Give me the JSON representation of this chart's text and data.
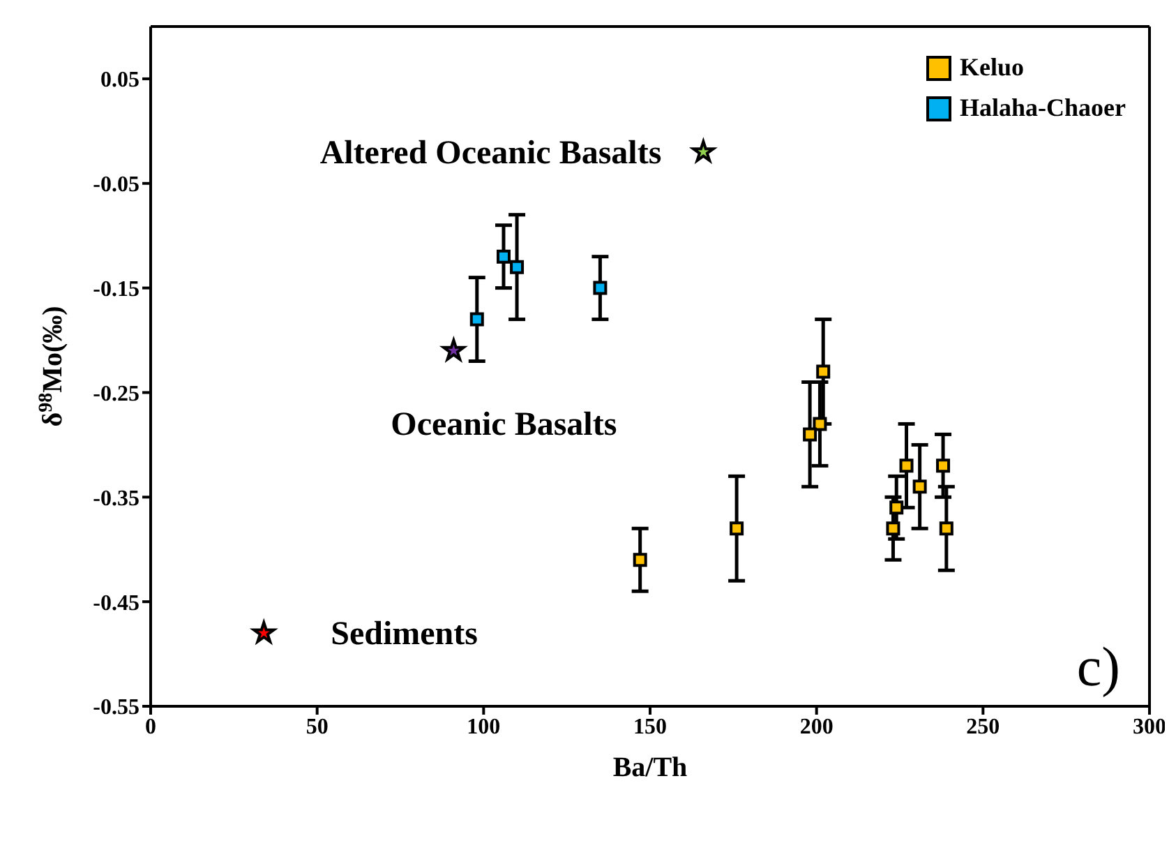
{
  "chart_data": {
    "type": "scatter",
    "xlabel": "Ba/Th",
    "ylabel": "δ$^{98}$Mo(‰)",
    "xlim": [
      0,
      300
    ],
    "xticks": [
      0,
      50,
      100,
      150,
      200,
      250,
      300
    ],
    "ylim": [
      -0.55,
      0.1
    ],
    "yticks": [
      0.05,
      -0.05,
      -0.15,
      -0.25,
      -0.35,
      -0.45,
      -0.55
    ],
    "grid": false,
    "legend": "top right",
    "marker": "square",
    "series": [
      {
        "name": "Keluo",
        "color": "#ffc000",
        "x": [
          147,
          176,
          202,
          201,
          198,
          227,
          238,
          231,
          224,
          223,
          239
        ],
        "values": [
          -0.41,
          -0.38,
          -0.23,
          -0.28,
          -0.29,
          -0.32,
          -0.32,
          -0.34,
          -0.36,
          -0.38,
          -0.38
        ],
        "errors": [
          0.03,
          0.05,
          0.05,
          0.04,
          0.05,
          0.04,
          0.03,
          0.04,
          0.03,
          0.03,
          0.04
        ]
      },
      {
        "name": "Halaha-Chaoer",
        "color": "#00b0f0",
        "x": [
          98,
          106,
          110,
          135
        ],
        "values": [
          -0.18,
          -0.12,
          -0.13,
          -0.15
        ],
        "errors": [
          0.04,
          0.03,
          0.05,
          0.03
        ]
      },
      {
        "color": "#92d050",
        "marker": "star",
        "x": [
          166
        ],
        "values": [
          -0.02
        ]
      },
      {
        "color": "#7030a0",
        "marker": "star",
        "x": [
          91
        ],
        "values": [
          -0.21
        ]
      },
      {
        "color": "#ff0000",
        "marker": "star",
        "x": [
          34
        ],
        "values": [
          -0.48
        ]
      }
    ],
    "annotations": [
      {
        "text": "Altered Oceanic Basalts",
        "x": 166,
        "y": -0.02
      },
      {
        "text": "Oceanic Basalts",
        "x": 91,
        "y": -0.21
      },
      {
        "text": "Sediments",
        "x": 34,
        "y": -0.48
      },
      "c)"
    ]
  }
}
